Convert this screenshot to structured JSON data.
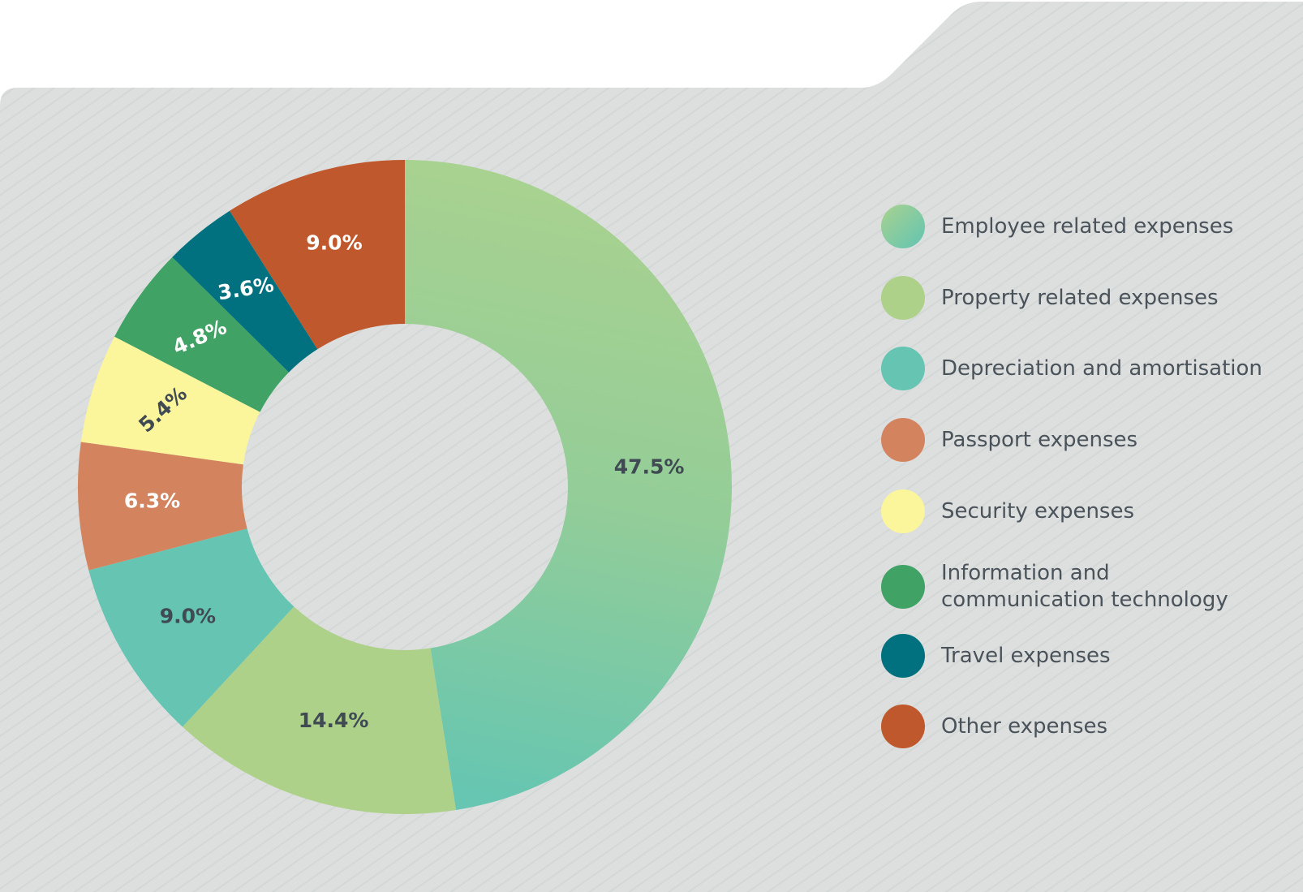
{
  "chart_data": {
    "type": "pie",
    "title": "",
    "categories": [
      "Employee related expenses",
      "Property related expenses",
      "Depreciation and amortisation",
      "Passport expenses",
      "Security expenses",
      "Information and\ncommunication technology",
      "Travel expenses",
      "Other expenses"
    ],
    "values": [
      47.5,
      14.4,
      9.0,
      6.3,
      5.4,
      4.8,
      3.6,
      9.0
    ],
    "data_labels": [
      "47.5%",
      "14.4%",
      "9.0%",
      "6.3%",
      "5.4%",
      "4.8%",
      "3.6%",
      "9.0%"
    ],
    "colors": [
      "gradient-green-teal",
      "#aed18a",
      "#65c5b2",
      "#d3845e",
      "#fbf59b",
      "#41a266",
      "#02717f",
      "#c0582d"
    ],
    "label_colors": [
      "#3f4a52",
      "#3f4a52",
      "#3f4a52",
      "#ffffff",
      "#3f4a52",
      "#ffffff",
      "#ffffff",
      "#ffffff"
    ],
    "legend_position": "right"
  }
}
